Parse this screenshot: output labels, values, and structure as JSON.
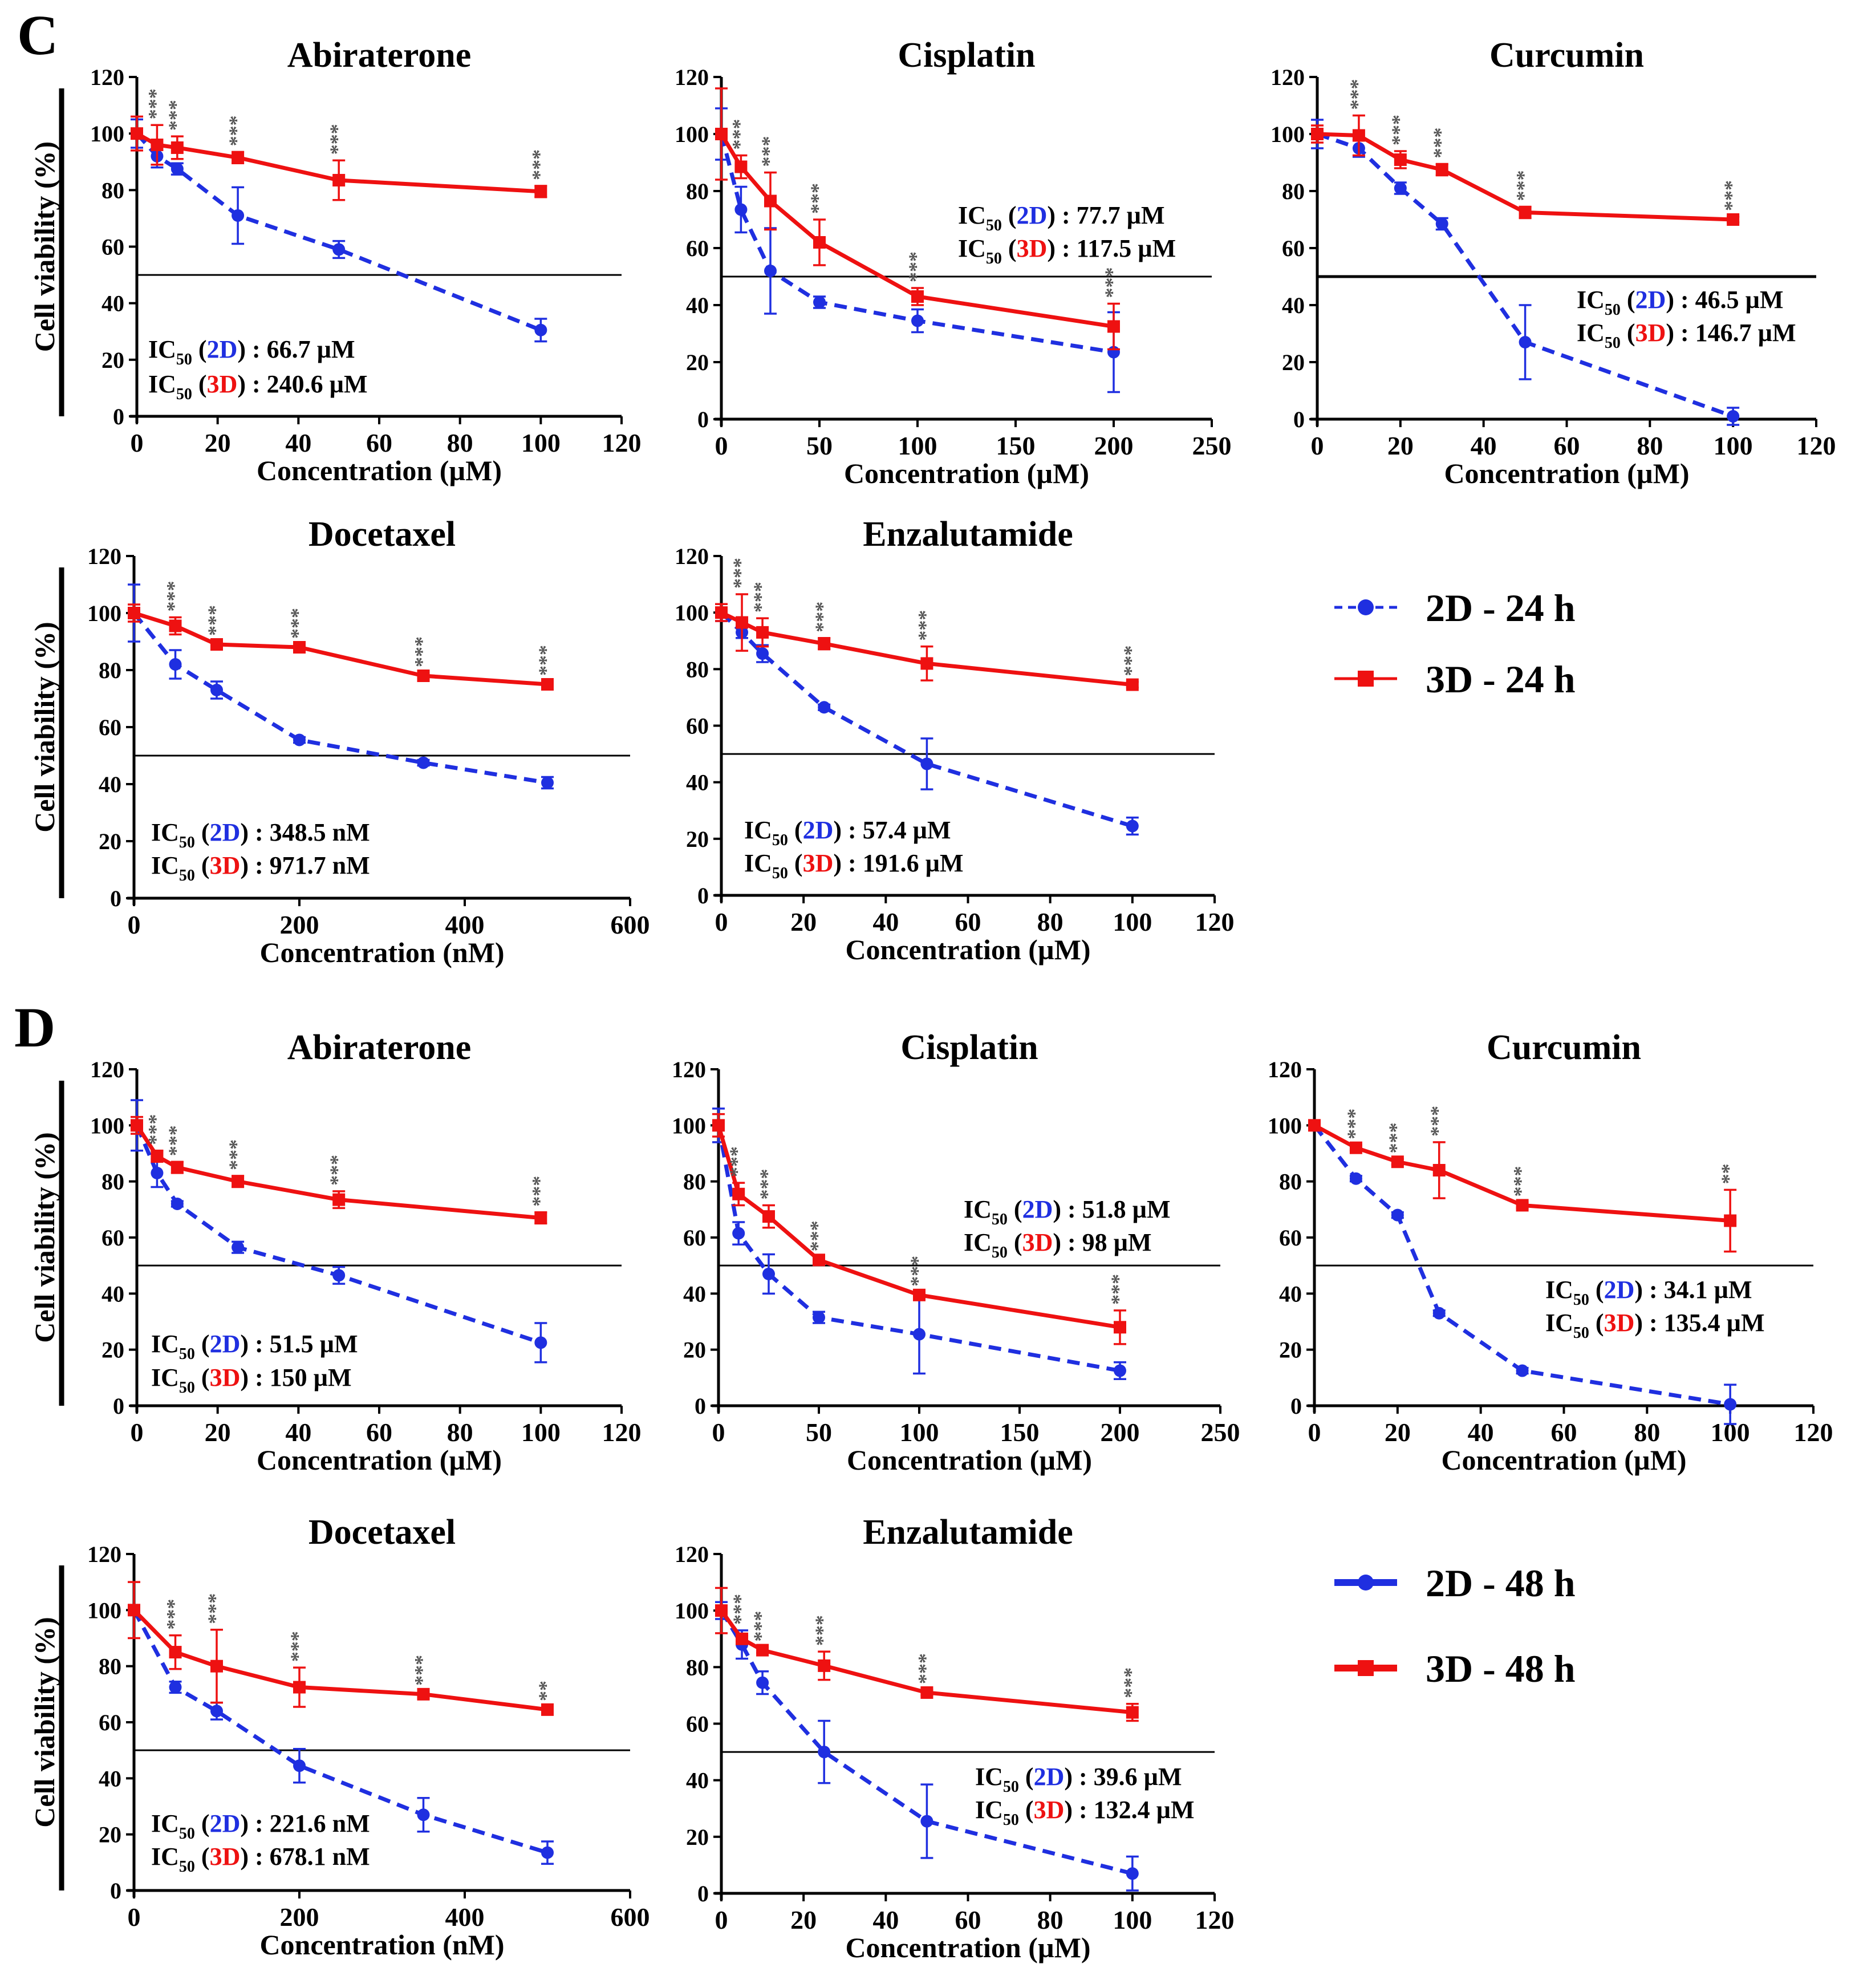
{
  "figure": {
    "panel_labels": [
      "C",
      "D"
    ],
    "ylabel": "Cell viability (%)",
    "threshold": 50
  },
  "legends": [
    {
      "items": [
        {
          "label": "2D - 24 h",
          "color": "#1f2fe0"
        },
        {
          "label": "3D - 24 h",
          "color": "#ee1111"
        }
      ]
    },
    {
      "items": [
        {
          "label": "2D - 48 h",
          "color": "#1f2fe0"
        },
        {
          "label": "3D - 48 h",
          "color": "#ee1111"
        }
      ]
    }
  ],
  "colors": {
    "d2": "#1f2fe0",
    "d3": "#ee1111",
    "text": "#000000",
    "sig": "#555555"
  },
  "chart_data": [
    {
      "type": "line",
      "panel": "C",
      "title": "Abiraterone",
      "xlabel": "Concentration (µM)",
      "ylabel": "Cell viability (%)",
      "xlim": [
        0,
        120
      ],
      "xticks": [
        0,
        20,
        40,
        60,
        80,
        100,
        120
      ],
      "ylim": [
        0,
        120
      ],
      "yticks": [
        0,
        20,
        40,
        60,
        80,
        100,
        120
      ],
      "ic50": [
        {
          "name": "2D",
          "value": "66.7 µM"
        },
        {
          "name": "3D",
          "value": "240.6 µM"
        }
      ],
      "series": [
        {
          "name": "2D - 24 h",
          "x": [
            0,
            5,
            10,
            25,
            50,
            100
          ],
          "y": [
            100,
            92,
            87.5,
            71,
            59,
            30.5
          ],
          "err": [
            5,
            4,
            2,
            10,
            3,
            4
          ]
        },
        {
          "name": "3D - 24 h",
          "x": [
            0,
            5,
            10,
            25,
            50,
            100
          ],
          "y": [
            100,
            96,
            95,
            91.5,
            83.5,
            79.5
          ],
          "err": [
            6,
            7,
            4,
            2,
            7,
            2
          ]
        }
      ],
      "sig": [
        {
          "x": 5,
          "text": "***"
        },
        {
          "x": 10,
          "text": "***"
        },
        {
          "x": 25,
          "text": "***"
        },
        {
          "x": 50,
          "text": "***"
        },
        {
          "x": 100,
          "text": "***"
        }
      ]
    },
    {
      "type": "line",
      "panel": "C",
      "title": "Cisplatin",
      "xlabel": "Concentration (µM)",
      "ylabel": "Cell viability (%)",
      "xlim": [
        0,
        250
      ],
      "xticks": [
        0,
        50,
        100,
        150,
        200,
        250
      ],
      "ylim": [
        0,
        120
      ],
      "yticks": [
        0,
        20,
        40,
        60,
        80,
        100,
        120
      ],
      "ic50": [
        {
          "name": "2D",
          "value": "77.7 µM"
        },
        {
          "name": "3D",
          "value": "117.5 µM"
        }
      ],
      "series": [
        {
          "name": "2D - 24 h",
          "x": [
            0,
            10,
            25,
            50,
            100,
            200
          ],
          "y": [
            100,
            73.5,
            52,
            41,
            34.5,
            23.5
          ],
          "err": [
            9,
            8,
            15,
            2,
            4,
            14
          ]
        },
        {
          "name": "3D - 24 h",
          "x": [
            0,
            10,
            25,
            50,
            100,
            200
          ],
          "y": [
            100,
            88.5,
            76.5,
            62,
            43,
            32.5
          ],
          "err": [
            16,
            4,
            10,
            8,
            3,
            8
          ]
        }
      ],
      "sig": [
        {
          "x": 10,
          "text": "***"
        },
        {
          "x": 25,
          "text": "***"
        },
        {
          "x": 50,
          "text": "***"
        },
        {
          "x": 100,
          "text": "***"
        },
        {
          "x": 200,
          "text": "***"
        }
      ]
    },
    {
      "type": "line",
      "panel": "C",
      "title": "Curcumin",
      "xlabel": "Concentration (µM)",
      "ylabel": "Cell viability (%)",
      "xlim": [
        0,
        120
      ],
      "xticks": [
        0,
        20,
        40,
        60,
        80,
        100,
        120
      ],
      "ylim": [
        0,
        120
      ],
      "yticks": [
        0,
        20,
        40,
        60,
        80,
        100,
        120
      ],
      "ic50": [
        {
          "name": "2D",
          "value": "46.5 µM"
        },
        {
          "name": "3D",
          "value": "146.7 µM"
        }
      ],
      "series": [
        {
          "name": "2D - 24 h",
          "x": [
            0,
            10,
            20,
            30,
            50,
            100
          ],
          "y": [
            100,
            95,
            81,
            68.5,
            27,
            1
          ],
          "err": [
            5,
            3,
            2,
            2,
            13,
            3
          ]
        },
        {
          "name": "3D - 24 h",
          "x": [
            0,
            10,
            20,
            30,
            50,
            100
          ],
          "y": [
            100,
            99.5,
            91,
            87.5,
            72.5,
            70
          ],
          "err": [
            3,
            7,
            3,
            2,
            2,
            1
          ]
        }
      ],
      "sig": [
        {
          "x": 10,
          "text": "***"
        },
        {
          "x": 20,
          "text": "***"
        },
        {
          "x": 30,
          "text": "***"
        },
        {
          "x": 50,
          "text": "***"
        },
        {
          "x": 100,
          "text": "***"
        }
      ]
    },
    {
      "type": "line",
      "panel": "C",
      "title": "Docetaxel",
      "xlabel": "Concentration (nM)",
      "ylabel": "Cell viability (%)",
      "xlim": [
        0,
        600
      ],
      "xticks": [
        0,
        200,
        400,
        600
      ],
      "ylim": [
        0,
        120
      ],
      "yticks": [
        0,
        20,
        40,
        60,
        80,
        100,
        120
      ],
      "ic50": [
        {
          "name": "2D",
          "value": "348.5 nM"
        },
        {
          "name": "3D",
          "value": "971.7 nM"
        }
      ],
      "series": [
        {
          "name": "2D - 24 h",
          "x": [
            0,
            50,
            100,
            200,
            350,
            500
          ],
          "y": [
            100,
            82,
            73,
            55.5,
            47.5,
            40.5
          ],
          "err": [
            10,
            5,
            3,
            1,
            1,
            2
          ]
        },
        {
          "name": "3D - 24 h",
          "x": [
            0,
            50,
            100,
            200,
            350,
            500
          ],
          "y": [
            100,
            95.5,
            89,
            88,
            78,
            75
          ],
          "err": [
            3,
            3,
            1,
            1,
            1,
            1
          ]
        }
      ],
      "sig": [
        {
          "x": 50,
          "text": "***"
        },
        {
          "x": 100,
          "text": "***"
        },
        {
          "x": 200,
          "text": "***"
        },
        {
          "x": 350,
          "text": "***"
        },
        {
          "x": 500,
          "text": "***"
        }
      ]
    },
    {
      "type": "line",
      "panel": "C",
      "title": "Enzalutamide",
      "xlabel": "Concentration (µM)",
      "ylabel": "Cell viability (%)",
      "xlim": [
        0,
        120
      ],
      "xticks": [
        0,
        20,
        40,
        60,
        80,
        100,
        120
      ],
      "ylim": [
        0,
        120
      ],
      "yticks": [
        0,
        20,
        40,
        60,
        80,
        100,
        120
      ],
      "ic50": [
        {
          "name": "2D",
          "value": "57.4 µM"
        },
        {
          "name": "3D",
          "value": "191.6 µM"
        }
      ],
      "series": [
        {
          "name": "2D - 24 h",
          "x": [
            0,
            5,
            10,
            25,
            50,
            100
          ],
          "y": [
            100,
            93,
            85.5,
            66.5,
            46.5,
            24.5
          ],
          "err": [
            3,
            2,
            3,
            1,
            9,
            3
          ]
        },
        {
          "name": "3D - 24 h",
          "x": [
            0,
            5,
            10,
            25,
            50,
            100
          ],
          "y": [
            100,
            96.5,
            93,
            89,
            82,
            74.5
          ],
          "err": [
            3,
            10,
            5,
            2,
            6,
            1
          ]
        }
      ],
      "sig": [
        {
          "x": 5,
          "text": "***"
        },
        {
          "x": 10,
          "text": "***"
        },
        {
          "x": 25,
          "text": "***"
        },
        {
          "x": 50,
          "text": "***"
        },
        {
          "x": 100,
          "text": "***"
        }
      ]
    },
    {
      "type": "line",
      "panel": "D",
      "title": "Abiraterone",
      "xlabel": "Concentration (µM)",
      "ylabel": "Cell viability (%)",
      "xlim": [
        0,
        120
      ],
      "xticks": [
        0,
        20,
        40,
        60,
        80,
        100,
        120
      ],
      "ylim": [
        0,
        120
      ],
      "yticks": [
        0,
        20,
        40,
        60,
        80,
        100,
        120
      ],
      "ic50": [
        {
          "name": "2D",
          "value": "51.5 µM"
        },
        {
          "name": "3D",
          "value": "150 µM"
        }
      ],
      "series": [
        {
          "name": "2D - 48 h",
          "x": [
            0,
            5,
            10,
            25,
            50,
            100
          ],
          "y": [
            100,
            83,
            72,
            56.5,
            46.5,
            22.5
          ],
          "err": [
            9,
            5,
            1,
            2,
            3,
            7
          ]
        },
        {
          "name": "3D - 48 h",
          "x": [
            0,
            5,
            10,
            25,
            50,
            100
          ],
          "y": [
            100,
            89,
            85,
            80,
            73.5,
            67
          ],
          "err": [
            3,
            2,
            2,
            2,
            3,
            2
          ]
        }
      ],
      "sig": [
        {
          "x": 5,
          "text": "***"
        },
        {
          "x": 10,
          "text": "***"
        },
        {
          "x": 25,
          "text": "***"
        },
        {
          "x": 50,
          "text": "***"
        },
        {
          "x": 100,
          "text": "***"
        }
      ]
    },
    {
      "type": "line",
      "panel": "D",
      "title": "Cisplatin",
      "xlabel": "Concentration (µM)",
      "ylabel": "Cell viability (%)",
      "xlim": [
        0,
        250
      ],
      "xticks": [
        0,
        50,
        100,
        150,
        200,
        250
      ],
      "ylim": [
        0,
        120
      ],
      "yticks": [
        0,
        20,
        40,
        60,
        80,
        100,
        120
      ],
      "ic50": [
        {
          "name": "2D",
          "value": "51.8 µM"
        },
        {
          "name": "3D",
          "value": "98 µM"
        }
      ],
      "series": [
        {
          "name": "2D - 48 h",
          "x": [
            0,
            10,
            25,
            50,
            100,
            200
          ],
          "y": [
            100,
            61.5,
            47,
            31.5,
            25.5,
            12.5
          ],
          "err": [
            6,
            4,
            7,
            2,
            14,
            3
          ]
        },
        {
          "name": "3D - 48 h",
          "x": [
            0,
            10,
            25,
            50,
            100,
            200
          ],
          "y": [
            100,
            75.5,
            67.5,
            52,
            39.5,
            28
          ],
          "err": [
            4,
            4,
            4,
            1,
            1,
            6
          ]
        }
      ],
      "sig": [
        {
          "x": 10,
          "text": "***"
        },
        {
          "x": 25,
          "text": "***"
        },
        {
          "x": 50,
          "text": "***"
        },
        {
          "x": 100,
          "text": "***"
        },
        {
          "x": 200,
          "text": "***"
        }
      ]
    },
    {
      "type": "line",
      "panel": "D",
      "title": "Curcumin",
      "xlabel": "Concentration (µM)",
      "ylabel": "Cell viability (%)",
      "xlim": [
        0,
        120
      ],
      "xticks": [
        0,
        20,
        40,
        60,
        80,
        100,
        120
      ],
      "ylim": [
        0,
        120
      ],
      "yticks": [
        0,
        20,
        40,
        60,
        80,
        100,
        120
      ],
      "ic50": [
        {
          "name": "2D",
          "value": "34.1 µM"
        },
        {
          "name": "3D",
          "value": "135.4 µM"
        }
      ],
      "series": [
        {
          "name": "2D - 48 h",
          "x": [
            0,
            10,
            20,
            30,
            50,
            100
          ],
          "y": [
            100,
            81,
            68,
            33,
            12.5,
            0.5
          ],
          "err": [
            1,
            1,
            1,
            1,
            1,
            7
          ]
        },
        {
          "name": "3D - 48 h",
          "x": [
            0,
            10,
            20,
            30,
            50,
            100
          ],
          "y": [
            100,
            92,
            87,
            84,
            71.5,
            66
          ],
          "err": [
            1,
            1,
            1,
            10,
            1,
            11
          ]
        }
      ],
      "sig": [
        {
          "x": 10,
          "text": "***"
        },
        {
          "x": 20,
          "text": "***"
        },
        {
          "x": 30,
          "text": "***"
        },
        {
          "x": 50,
          "text": "***"
        },
        {
          "x": 100,
          "text": "**"
        }
      ]
    },
    {
      "type": "line",
      "panel": "D",
      "title": "Docetaxel",
      "xlabel": "Concentration (nM)",
      "ylabel": "Cell viability (%)",
      "xlim": [
        0,
        600
      ],
      "xticks": [
        0,
        200,
        400,
        600
      ],
      "ylim": [
        0,
        120
      ],
      "yticks": [
        0,
        20,
        40,
        60,
        80,
        100,
        120
      ],
      "ic50": [
        {
          "name": "2D",
          "value": "221.6 nM"
        },
        {
          "name": "3D",
          "value": "678.1 nM"
        }
      ],
      "series": [
        {
          "name": "2D - 48 h",
          "x": [
            0,
            50,
            100,
            200,
            350,
            500
          ],
          "y": [
            100,
            72.5,
            64,
            44.5,
            27,
            13.5
          ],
          "err": [
            1,
            2,
            3,
            6,
            6,
            4
          ]
        },
        {
          "name": "3D - 48 h",
          "x": [
            0,
            50,
            100,
            200,
            350,
            500
          ],
          "y": [
            100,
            85,
            80,
            72.5,
            70,
            64.5
          ],
          "err": [
            10,
            6,
            13,
            7,
            1,
            1
          ]
        }
      ],
      "sig": [
        {
          "x": 50,
          "text": "***"
        },
        {
          "x": 100,
          "text": "***"
        },
        {
          "x": 200,
          "text": "***"
        },
        {
          "x": 350,
          "text": "***"
        },
        {
          "x": 500,
          "text": "**"
        }
      ]
    },
    {
      "type": "line",
      "panel": "D",
      "title": "Enzalutamide",
      "xlabel": "Concentration (µM)",
      "ylabel": "Cell viability (%)",
      "xlim": [
        0,
        120
      ],
      "xticks": [
        0,
        20,
        40,
        60,
        80,
        100,
        120
      ],
      "ylim": [
        0,
        120
      ],
      "yticks": [
        0,
        20,
        40,
        60,
        80,
        100,
        120
      ],
      "ic50": [
        {
          "name": "2D",
          "value": "39.6 µM"
        },
        {
          "name": "3D",
          "value": "132.4 µM"
        }
      ],
      "series": [
        {
          "name": "2D - 48 h",
          "x": [
            0,
            5,
            10,
            25,
            50,
            100
          ],
          "y": [
            100,
            88,
            74.5,
            50,
            25.5,
            7
          ],
          "err": [
            3,
            5,
            4,
            11,
            13,
            6
          ]
        },
        {
          "name": "3D - 48 h",
          "x": [
            0,
            5,
            10,
            25,
            50,
            100
          ],
          "y": [
            100,
            90,
            86,
            80.5,
            71,
            64
          ],
          "err": [
            8,
            1,
            1,
            5,
            1,
            3
          ]
        }
      ],
      "sig": [
        {
          "x": 5,
          "text": "***"
        },
        {
          "x": 10,
          "text": "***"
        },
        {
          "x": 25,
          "text": "***"
        },
        {
          "x": 50,
          "text": "***"
        },
        {
          "x": 100,
          "text": "***"
        }
      ]
    }
  ]
}
